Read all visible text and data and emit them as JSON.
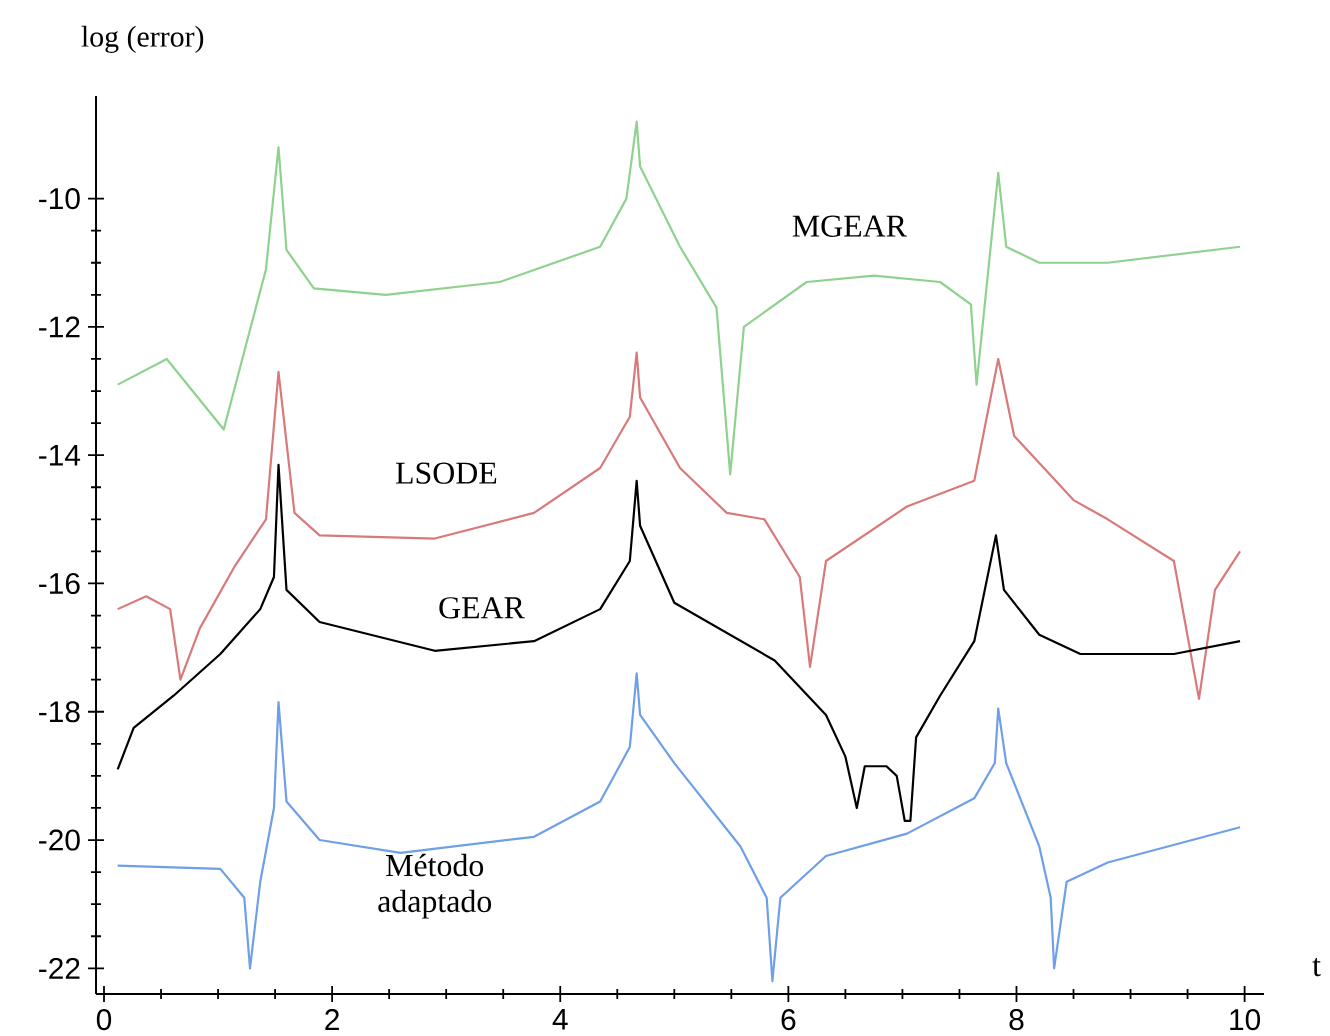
{
  "chart_data": {
    "type": "line",
    "xlabel": "t",
    "ylabel": "log  (error)",
    "xlim": [
      -0.07,
      10.17
    ],
    "ylim": [
      -22.4,
      -8.4
    ],
    "xticks": [
      0,
      2,
      4,
      6,
      8,
      10
    ],
    "yticks": [
      -22,
      -20,
      -18,
      -16,
      -14,
      -12,
      -10
    ],
    "grid": false,
    "legend": false,
    "marker": "none",
    "line_style": "solid",
    "series": [
      {
        "name": "MGEAR",
        "color": "#8fd18f",
        "x": [
          0.12,
          0.55,
          1.05,
          1.42,
          1.53,
          1.6,
          1.84,
          2.47,
          3.47,
          4.35,
          4.58,
          4.67,
          4.7,
          5.05,
          5.37,
          5.49,
          5.61,
          6.16,
          6.75,
          7.33,
          7.6,
          7.65,
          7.84,
          7.91,
          8.2,
          8.8,
          9.96
        ],
        "values": [
          -12.9,
          -12.5,
          -13.6,
          -11.1,
          -9.2,
          -10.8,
          -11.4,
          -11.5,
          -11.3,
          -10.75,
          -10.0,
          -8.8,
          -9.5,
          -10.75,
          -11.7,
          -14.3,
          -12.0,
          -11.3,
          -11.2,
          -11.3,
          -11.65,
          -12.9,
          -9.6,
          -10.75,
          -11.0,
          -11.0,
          -10.75
        ]
      },
      {
        "name": "LSODE",
        "color": "#d9797a",
        "x": [
          0.12,
          0.37,
          0.58,
          0.67,
          0.84,
          1.14,
          1.42,
          1.53,
          1.67,
          1.89,
          2.9,
          3.77,
          4.35,
          4.61,
          4.67,
          4.7,
          5.05,
          5.46,
          5.79,
          6.1,
          6.19,
          6.33,
          7.04,
          7.63,
          7.74,
          7.84,
          7.98,
          8.5,
          8.8,
          9.38,
          9.6,
          9.74,
          9.96
        ],
        "values": [
          -16.4,
          -16.2,
          -16.4,
          -17.5,
          -16.7,
          -15.75,
          -15.0,
          -12.7,
          -14.9,
          -15.25,
          -15.3,
          -14.9,
          -14.2,
          -13.4,
          -12.4,
          -13.1,
          -14.2,
          -14.9,
          -15.0,
          -15.9,
          -17.3,
          -15.65,
          -14.8,
          -14.4,
          -13.4,
          -12.5,
          -13.7,
          -14.7,
          -15.0,
          -15.65,
          -17.8,
          -16.1,
          -15.5
        ]
      },
      {
        "name": "GEAR",
        "color": "#000000",
        "x": [
          0.12,
          0.26,
          0.61,
          1.02,
          1.37,
          1.49,
          1.53,
          1.6,
          1.89,
          2.9,
          3.77,
          4.35,
          4.61,
          4.67,
          4.7,
          5.0,
          5.88,
          6.33,
          6.5,
          6.6,
          6.67,
          6.86,
          6.95,
          7.02,
          7.07,
          7.12,
          7.33,
          7.63,
          7.82,
          7.89,
          8.2,
          8.56,
          9.38,
          9.96
        ],
        "values": [
          -18.9,
          -18.25,
          -17.75,
          -17.1,
          -16.4,
          -15.9,
          -14.15,
          -16.1,
          -16.6,
          -17.05,
          -16.9,
          -16.4,
          -15.65,
          -14.4,
          -15.1,
          -16.3,
          -17.2,
          -18.05,
          -18.7,
          -19.5,
          -18.85,
          -18.85,
          -19.0,
          -19.7,
          -19.7,
          -18.4,
          -17.75,
          -16.9,
          -15.25,
          -16.1,
          -16.8,
          -17.1,
          -17.1,
          -16.9
        ]
      },
      {
        "name": "Método adaptado",
        "color": "#6f9fe6",
        "x": [
          0.12,
          1.02,
          1.23,
          1.28,
          1.37,
          1.49,
          1.53,
          1.6,
          1.89,
          2.6,
          3.77,
          4.35,
          4.61,
          4.67,
          4.7,
          5.0,
          5.58,
          5.81,
          5.86,
          5.93,
          6.33,
          7.04,
          7.63,
          7.81,
          7.84,
          7.91,
          8.2,
          8.3,
          8.33,
          8.44,
          8.8,
          9.96
        ],
        "values": [
          -20.4,
          -20.45,
          -20.9,
          -22.0,
          -20.65,
          -19.5,
          -17.85,
          -19.4,
          -20.0,
          -20.2,
          -19.95,
          -19.4,
          -18.55,
          -17.4,
          -18.05,
          -18.8,
          -20.1,
          -20.9,
          -22.2,
          -20.9,
          -20.25,
          -19.9,
          -19.35,
          -18.8,
          -17.95,
          -18.8,
          -20.1,
          -20.9,
          -22.0,
          -20.65,
          -20.35,
          -19.8
        ]
      }
    ]
  }
}
